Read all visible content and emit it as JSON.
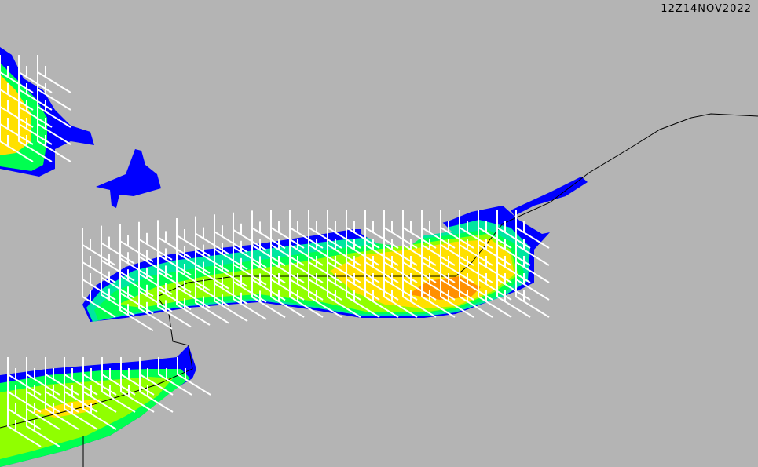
{
  "header": {
    "valid_time": "12Z14NOV2022"
  },
  "colors": {
    "land": "#b4b4b4",
    "level_1": "#0000ff",
    "level_2": "#00e6a0",
    "level_3": "#00ff50",
    "level_4": "#90ff00",
    "level_5": "#ffe000",
    "level_6": "#ff9000",
    "wind_barbs": "#ffffff",
    "boundaries": "#000000"
  }
}
